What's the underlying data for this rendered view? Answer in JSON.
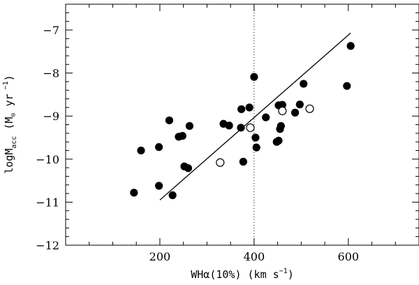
{
  "chart_data": {
    "type": "scatter",
    "xlabel": {
      "text": "WHα(10%) (km s",
      "sup": "−1",
      "suffix": ")"
    },
    "ylabel": {
      "prefix": "logM",
      "sub": "acc",
      "mid": " (M",
      "sun": "⊙",
      "text2": " yr",
      "sup": " −1",
      "suffix": ")"
    },
    "xlim": [
      0,
      750
    ],
    "ylim": [
      -12,
      -6.4
    ],
    "x_major_ticks": [
      200,
      400,
      600
    ],
    "x_minor_step": 50,
    "y_major_ticks": [
      -7,
      -8,
      -9,
      -10,
      -11,
      -12
    ],
    "y_minor_step": 0.2,
    "x_tick_labels": [
      "200",
      "400",
      "600"
    ],
    "y_tick_labels": [
      "−7",
      "−8",
      "−9",
      "−10",
      "−11",
      "−12"
    ],
    "reference_line_x": 400,
    "fit_line": {
      "x": [
        200,
        605
      ],
      "y": [
        -10.95,
        -7.07
      ]
    },
    "series": [
      {
        "marker": "filled-circle",
        "points": [
          [
            145,
            -10.78
          ],
          [
            160,
            -9.8
          ],
          [
            198,
            -9.72
          ],
          [
            198,
            -10.62
          ],
          [
            220,
            -9.1
          ],
          [
            227,
            -10.84
          ],
          [
            240,
            -9.48
          ],
          [
            248,
            -9.46
          ],
          [
            252,
            -10.17
          ],
          [
            260,
            -10.21
          ],
          [
            263,
            -9.23
          ],
          [
            335,
            -9.18
          ],
          [
            347,
            -9.22
          ],
          [
            372,
            -9.27
          ],
          [
            373,
            -8.84
          ],
          [
            377,
            -10.06
          ],
          [
            390,
            -8.8
          ],
          [
            400,
            -8.09
          ],
          [
            403,
            -9.5
          ],
          [
            405,
            -9.73
          ],
          [
            425,
            -9.03
          ],
          [
            448,
            -9.6
          ],
          [
            452,
            -9.57
          ],
          [
            452,
            -8.75
          ],
          [
            455,
            -9.3
          ],
          [
            457,
            -9.23
          ],
          [
            460,
            -8.74
          ],
          [
            487,
            -8.92
          ],
          [
            497,
            -8.73
          ],
          [
            505,
            -8.25
          ],
          [
            597,
            -8.3
          ],
          [
            605,
            -7.37
          ]
        ]
      },
      {
        "marker": "open-circle",
        "points": [
          [
            328,
            -10.08
          ],
          [
            392,
            -9.27
          ],
          [
            460,
            -8.88
          ],
          [
            518,
            -8.83
          ]
        ]
      }
    ]
  }
}
